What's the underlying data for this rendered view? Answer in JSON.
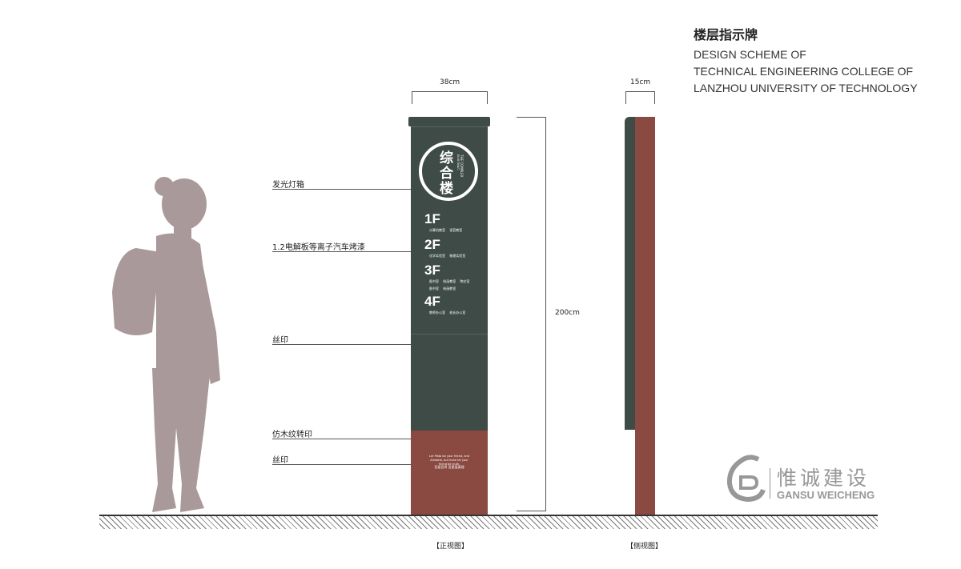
{
  "title": {
    "cn": "楼层指示牌",
    "en": [
      "DESIGN SCHEME OF",
      "TECHNICAL ENGINEERING COLLEGE OF",
      "LANZHOU UNIVERSITY OF TECHNOLOGY"
    ]
  },
  "dimensions": {
    "front_width": "38cm",
    "side_width": "15cm",
    "height": "200cm"
  },
  "callouts": [
    "发光灯箱",
    "1.2电解板等离子汽车烤漆",
    "丝印",
    "仿木纹转印",
    "丝印"
  ],
  "sign": {
    "building": "综合楼",
    "building_en": "THE COMPLEX BUILDING",
    "floors": [
      {
        "label": "1F",
        "rooms": [
          "计算机教室  语音教室"
        ]
      },
      {
        "label": "2F",
        "rooms": [
          "化学实验室  物理实验室"
        ]
      },
      {
        "label": "3F",
        "rooms": [
          "图书室  绘画教室  陶艺室",
          "图书室  绘画教室"
        ]
      },
      {
        "label": "4F",
        "rooms": [
          "教师办公室  校长办公室"
        ]
      }
    ],
    "quote_en": "Let Plato be your friend, and Aristotle, but more let your friend be truth.",
    "quote_cn": [
      "吾爱吾师 吾更爱真理"
    ]
  },
  "views": {
    "front": "【正视图】",
    "side": "【侧视图】"
  },
  "logo": {
    "cn": "惟诚建设",
    "en": "GANSU WEICHENG"
  },
  "colors": {
    "sign_green": "#3e4b46",
    "sign_red": "#8a4a41",
    "person": "#a9999a",
    "logo": "#9a9797"
  }
}
